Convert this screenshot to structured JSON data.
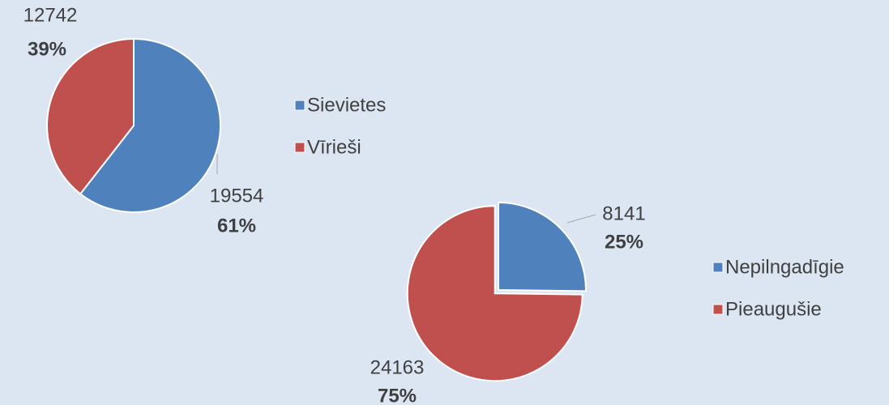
{
  "chart_data": [
    {
      "type": "pie",
      "categories": [
        "Sievietes",
        "Vīrieši"
      ],
      "values": [
        19554,
        12742
      ],
      "percent_labels": [
        "61%",
        "39%"
      ],
      "colors": [
        "#4f81bd",
        "#c0504d"
      ]
    },
    {
      "type": "pie",
      "categories": [
        "Nepilngadīgie",
        "Pieaugušie"
      ],
      "values": [
        8141,
        24163
      ],
      "percent_labels": [
        "25%",
        "75%"
      ],
      "colors": [
        "#4f81bd",
        "#c0504d"
      ]
    }
  ]
}
